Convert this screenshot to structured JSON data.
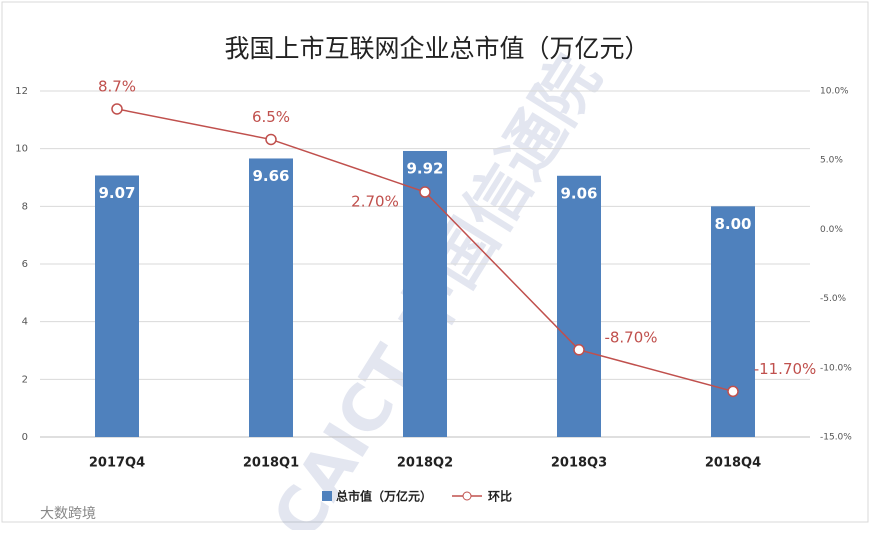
{
  "chart_data": {
    "type": "bar",
    "title": "我国上市互联网企业总市值（万亿元）",
    "categories": [
      "2017Q4",
      "2018Q1",
      "2018Q2",
      "2018Q3",
      "2018Q4"
    ],
    "series": [
      {
        "name": "总市值（万亿元）",
        "color": "#4f81bd",
        "values": [
          9.07,
          9.66,
          9.92,
          9.06,
          8.0
        ],
        "value_labels": [
          "9.07",
          "9.66",
          "9.92",
          "9.06",
          "8.00"
        ]
      },
      {
        "name": "环比",
        "type": "line",
        "axis": "y2",
        "color": "#c0504d",
        "values": [
          8.7,
          6.5,
          2.7,
          -8.7,
          -11.7
        ],
        "value_labels": [
          "8.7%",
          "6.5%",
          "2.70%",
          "-8.70%",
          "-11.70%"
        ]
      }
    ],
    "ylim": [
      0,
      12
    ],
    "yticks": [
      0,
      2,
      4,
      6,
      8,
      10,
      12
    ],
    "y2lim": [
      -15,
      10
    ],
    "y2ticks": [
      {
        "value": -15,
        "label": "-15.0%"
      },
      {
        "value": -10,
        "label": "-10.0%"
      },
      {
        "value": -5,
        "label": "-5.0%"
      },
      {
        "value": 0,
        "label": "0.0%"
      },
      {
        "value": 5,
        "label": "5.0%"
      },
      {
        "value": 10,
        "label": "10.0%"
      }
    ],
    "legend": "bottom",
    "watermarks": [
      "CAICT 中国信通院",
      "大数跨境"
    ]
  }
}
